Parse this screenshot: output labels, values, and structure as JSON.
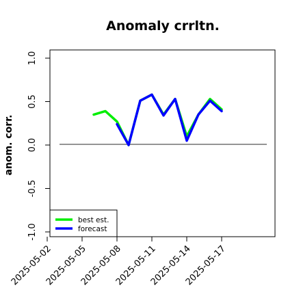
{
  "chart_data": {
    "type": "line",
    "title": "Anomaly crrltn.",
    "xlabel": "",
    "ylabel": "anom. corr.",
    "x": [
      "2025-05-02",
      "2025-05-03",
      "2025-05-04",
      "2025-05-05",
      "2025-05-06",
      "2025-05-07",
      "2025-05-08",
      "2025-05-09",
      "2025-05-10",
      "2025-05-11",
      "2025-05-12",
      "2025-05-13",
      "2025-05-14",
      "2025-05-15",
      "2025-05-16",
      "2025-05-17"
    ],
    "xticks": [
      "2025-05-02",
      "2025-05-05",
      "2025-05-08",
      "2025-05-11",
      "2025-05-14",
      "2025-05-17"
    ],
    "highlighted_xtick": "2025-05-08",
    "highlight_color": "#228b22",
    "ylim": [
      -1.0,
      1.0
    ],
    "yticks": [
      "-1.0",
      "-0.5",
      "0.0",
      "0.5",
      "1.0"
    ],
    "reference_line": 0.0,
    "legend_position": "bottom-left",
    "grid": false,
    "series": [
      {
        "name": "best est.",
        "color": "#00ee00",
        "values": [
          null,
          null,
          null,
          null,
          0.35,
          0.39,
          0.27,
          0.0,
          0.51,
          0.58,
          0.35,
          0.53,
          0.1,
          0.35,
          0.53,
          0.41
        ]
      },
      {
        "name": "forecast",
        "color": "#0000ff",
        "values": [
          null,
          null,
          null,
          null,
          null,
          null,
          0.24,
          0.0,
          0.51,
          0.58,
          0.34,
          0.53,
          0.05,
          0.35,
          0.51,
          0.39
        ]
      }
    ]
  }
}
